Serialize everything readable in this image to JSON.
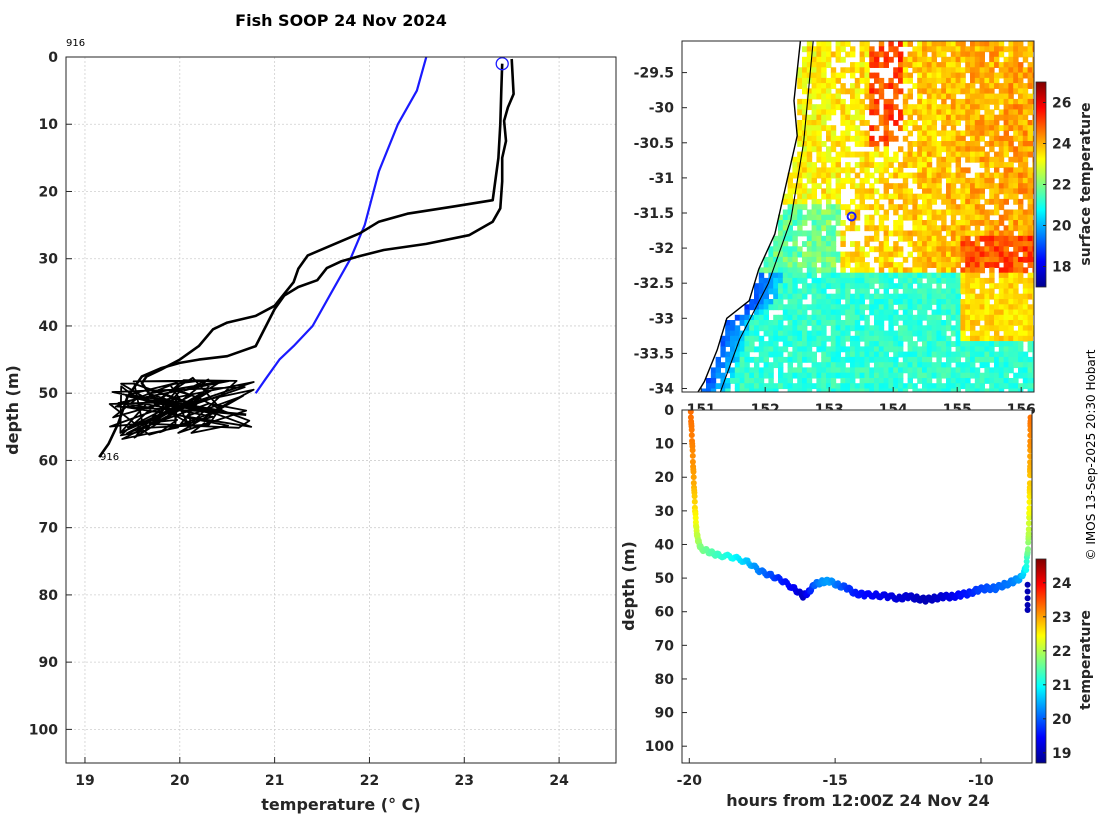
{
  "figure": {
    "title": "Fish SOOP 24 Nov 2024",
    "credit": "© IMOS 13-Sep-2025 20:30 Hobart",
    "profile_id": "916"
  },
  "chart_data": [
    {
      "type": "line",
      "name": "temperature-profile",
      "xlabel": "temperature (° C)",
      "ylabel": "depth (m)",
      "xlim": [
        18.8,
        24.6
      ],
      "ylim": [
        0,
        105
      ],
      "y_reversed": true,
      "grid": true,
      "x_ticks": [
        19,
        20,
        21,
        22,
        23,
        24
      ],
      "y_ticks": [
        0,
        10,
        20,
        30,
        40,
        50,
        60,
        70,
        80,
        90,
        100
      ],
      "annotations": [
        {
          "text": "916",
          "x": 18.8,
          "y": -2.5
        },
        {
          "text": "916",
          "x": 19.12,
          "y": 59.7
        }
      ],
      "marker": {
        "x": 23.4,
        "y": 1,
        "color": "#1a1aff"
      },
      "series": [
        {
          "name": "climatology",
          "color": "#1a1aff",
          "x": [
            22.6,
            22.5,
            22.3,
            22.1,
            21.95,
            21.8,
            21.6,
            21.4,
            21.2,
            21.05,
            20.9,
            20.8
          ],
          "y": [
            0,
            5,
            10,
            17,
            25,
            30,
            35,
            40,
            43,
            45,
            48,
            50
          ]
        },
        {
          "name": "descent",
          "color": "#000000",
          "x": [
            23.4,
            23.39,
            23.38,
            23.36,
            23.3,
            22.9,
            22.4,
            22.1,
            21.9,
            21.6,
            21.35,
            21.25,
            21.2,
            21.0,
            20.8,
            20.5,
            20.35,
            20.2,
            20.0,
            19.8,
            19.65,
            19.6,
            19.7,
            20.0,
            20.3,
            20.7
          ],
          "y": [
            1,
            5,
            10,
            15,
            21.3,
            22.2,
            23.3,
            24.5,
            26.2,
            28,
            29.5,
            31.5,
            33.5,
            37,
            38.5,
            39.5,
            40.5,
            43,
            45,
            46.5,
            47.5,
            48.5,
            50.5,
            52,
            52.7,
            53.2
          ]
        },
        {
          "name": "ascent",
          "color": "#000000",
          "x": [
            23.5,
            23.52,
            23.46,
            23.42,
            23.44,
            23.4,
            23.4,
            23.38,
            23.3,
            23.05,
            22.6,
            22.15,
            21.9,
            21.7,
            21.55,
            21.45,
            21.25,
            21.1,
            21.0,
            20.8,
            20.5,
            20.2,
            20.0,
            19.8,
            19.6,
            19.45,
            19.35,
            19.25,
            19.15
          ],
          "y": [
            0.3,
            5.5,
            7.5,
            9.5,
            12.5,
            15,
            18.5,
            22.5,
            24.5,
            26.5,
            27.8,
            28.7,
            29.6,
            30.4,
            31.4,
            33.2,
            34.2,
            35.5,
            37.5,
            43,
            44.5,
            45,
            45.5,
            46.3,
            47.5,
            50.5,
            54.5,
            57.5,
            59.5
          ]
        }
      ]
    },
    {
      "type": "heatmap",
      "name": "surface-temperature-map",
      "colorbar_label": "surface temperature",
      "x_ticks": [
        151,
        152,
        153,
        154,
        155,
        156
      ],
      "y_ticks": [
        -29.5,
        -30,
        -30.5,
        -31,
        -31.5,
        -32,
        -32.5,
        -33,
        -33.5,
        -34
      ],
      "xlim": [
        150.7,
        156.2
      ],
      "ylim": [
        -34.05,
        -29.05
      ],
      "clim": [
        17,
        27
      ],
      "colorbar_ticks": [
        18,
        20,
        22,
        24,
        26
      ],
      "marker": {
        "lon": 153.35,
        "lat": -31.55,
        "color": "#1a1aff"
      },
      "coastline": [
        [
          152.55,
          -29.05
        ],
        [
          152.45,
          -29.9
        ],
        [
          152.5,
          -30.4
        ],
        [
          152.3,
          -31.2
        ],
        [
          152.15,
          -31.8
        ],
        [
          151.9,
          -32.3
        ],
        [
          151.75,
          -32.75
        ],
        [
          151.4,
          -33.0
        ],
        [
          151.25,
          -33.45
        ],
        [
          151.05,
          -33.9
        ],
        [
          150.95,
          -34.05
        ]
      ],
      "isobath": [
        [
          152.75,
          -29.05
        ],
        [
          152.6,
          -30.5
        ],
        [
          152.4,
          -31.6
        ],
        [
          152.05,
          -32.5
        ],
        [
          151.6,
          -33.3
        ],
        [
          151.3,
          -34.05
        ]
      ]
    },
    {
      "type": "scatter",
      "name": "depth-time-section",
      "xlabel": "hours from 12:00Z 24 Nov 24",
      "ylabel": "depth (m)",
      "xlim": [
        -20.25,
        -8.25
      ],
      "ylim": [
        0,
        105
      ],
      "y_reversed": true,
      "x_ticks": [
        -20,
        -15,
        -10
      ],
      "y_ticks": [
        0,
        10,
        20,
        30,
        40,
        50,
        60,
        70,
        80,
        90,
        100
      ],
      "colorbar_label": "temperature",
      "clim": [
        18.7,
        24.7
      ],
      "colorbar_ticks": [
        19,
        20,
        21,
        22,
        23,
        24
      ],
      "track": {
        "t": [
          -19.95,
          -19.9,
          -19.85,
          -19.8,
          -19.75,
          -19.7,
          -19.6,
          -19.3,
          -19.0,
          -18.5,
          -18.0,
          -17.6,
          -17.2,
          -16.8,
          -16.4,
          -16.1,
          -15.9,
          -15.7,
          -15.45,
          -15.2,
          -14.9,
          -14.6,
          -14.3,
          -14.0,
          -13.6,
          -13.2,
          -12.8,
          -12.5,
          -12.2,
          -11.9,
          -11.6,
          -11.3,
          -11.0,
          -10.7,
          -10.4,
          -10.1,
          -9.8,
          -9.5,
          -9.2,
          -8.9,
          -8.65,
          -8.45,
          -8.38,
          -8.34,
          -8.32,
          -8.31,
          -8.3
        ],
        "d": [
          0.5,
          10,
          20,
          30,
          36,
          39,
          41,
          42.5,
          43,
          44,
          45,
          48,
          49,
          51,
          53,
          55.5,
          54,
          52,
          51,
          51,
          52,
          53,
          54.5,
          55,
          55,
          55.5,
          56,
          55.5,
          56,
          56.5,
          56,
          55.5,
          55.5,
          55,
          54.5,
          53.5,
          53,
          53,
          52,
          51,
          50,
          47,
          40,
          30,
          20,
          10,
          0.5
        ],
        "temp": [
          23.3,
          23.2,
          23.0,
          22.6,
          22.2,
          22.0,
          21.7,
          21.5,
          21.3,
          21.0,
          20.6,
          20.2,
          19.9,
          19.6,
          19.4,
          19.1,
          19.5,
          20.0,
          20.3,
          20.4,
          20.1,
          19.8,
          19.6,
          19.5,
          19.4,
          19.3,
          19.2,
          19.2,
          19.1,
          19.0,
          19.1,
          19.2,
          19.3,
          19.5,
          19.6,
          19.8,
          19.9,
          20.0,
          20.1,
          20.2,
          20.4,
          21.0,
          21.8,
          22.4,
          22.8,
          23.1,
          23.3
        ]
      },
      "bottom_tail": {
        "t": -8.4,
        "d": [
          52,
          54,
          56,
          58,
          59.5
        ],
        "temp": 19.0
      }
    }
  ]
}
